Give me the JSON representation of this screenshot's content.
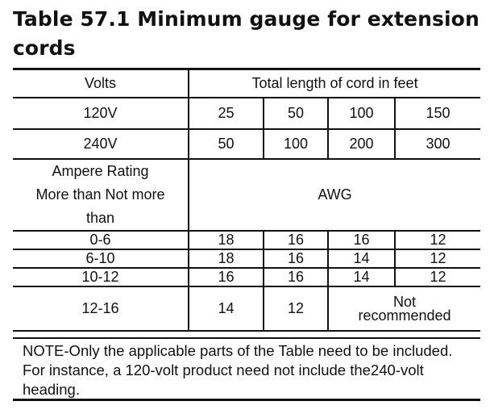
{
  "title": "Table 57.1 Minimum gauge for extension cords",
  "header": {
    "volts": "Volts",
    "total_length": "Total length of cord in feet"
  },
  "rows_voltage": [
    {
      "label": "120V",
      "values": [
        "25",
        "50",
        "100",
        "150"
      ]
    },
    {
      "label": "240V",
      "values": [
        "50",
        "100",
        "200",
        "300"
      ]
    }
  ],
  "ampere": {
    "line1": "Ampere Rating",
    "line2": "More than Not more",
    "line3": "than",
    "awg": "AWG"
  },
  "rows_gauge": [
    {
      "range": "0-6",
      "values": [
        "18",
        "16",
        "16",
        "12"
      ]
    },
    {
      "range": "6-10",
      "values": [
        "18",
        "16",
        "14",
        "12"
      ]
    },
    {
      "range": "10-12",
      "values": [
        "16",
        "16",
        "14",
        "12"
      ]
    }
  ],
  "row_last": {
    "range": "12-16",
    "values": [
      "14",
      "12"
    ],
    "not_recommended_line1": "Not",
    "not_recommended_line2": "recommended"
  },
  "note": "NOTE-Only the applicable parts of the Table need to be included. For instance, a 120-volt product need not include the240-volt heading."
}
